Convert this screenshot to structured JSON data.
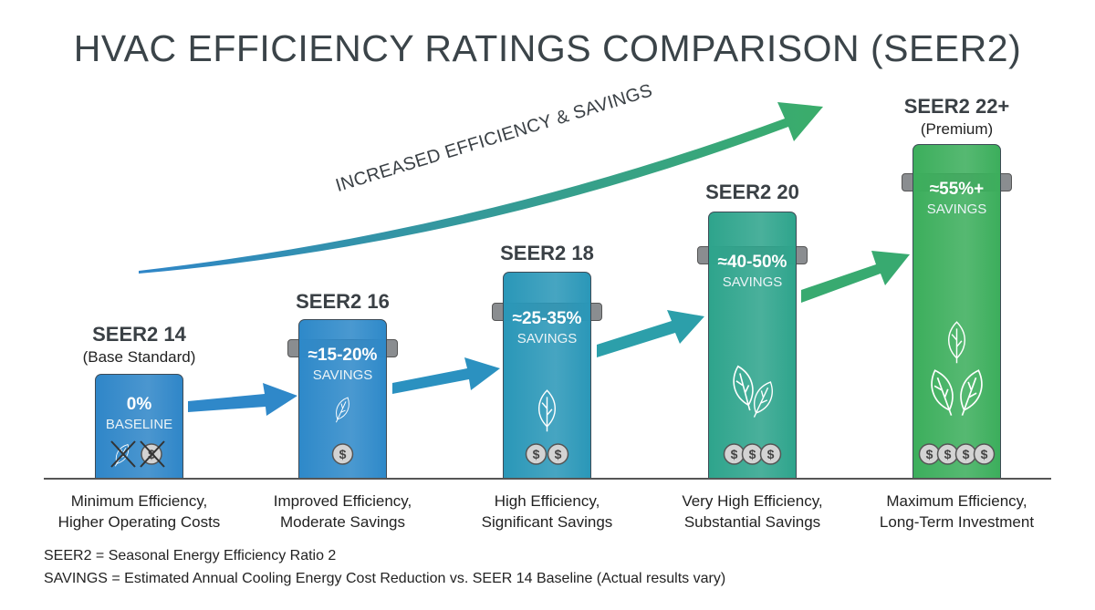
{
  "title": "HVAC EFFICIENCY RATINGS COMPARISON (SEER2)",
  "trend_label": "INCREASED EFFICIENCY & SAVINGS",
  "levels": [
    {
      "name": "SEER2 14",
      "sub": "(Base Standard)",
      "savings": "0%",
      "savings_label": "BASELINE",
      "caption": [
        "Minimum Efficiency,",
        "Higher Operating Costs"
      ],
      "color": "#2f86c8",
      "leaves": 0,
      "coins": 1,
      "crossed": true
    },
    {
      "name": "SEER2 16",
      "sub": "",
      "savings": "≈15-20%",
      "savings_label": "SAVINGS",
      "caption": [
        "Improved Efficiency,",
        "Moderate Savings"
      ],
      "color": "#2e89c9",
      "leaves": 1,
      "coins": 1
    },
    {
      "name": "SEER2 18",
      "sub": "",
      "savings": "≈25-35%",
      "savings_label": "SAVINGS",
      "caption": [
        "High Efficiency,",
        "Significant Savings"
      ],
      "color": "#2a97b8",
      "leaves": 1,
      "coins": 2
    },
    {
      "name": "SEER2 20",
      "sub": "",
      "savings": "≈40-50%",
      "savings_label": "SAVINGS",
      "caption": [
        "Very High Efficiency,",
        "Substantial Savings"
      ],
      "color": "#2ea48c",
      "leaves": 2,
      "coins": 3
    },
    {
      "name": "SEER2 22+",
      "sub": "(Premium)",
      "savings": "≈55%+",
      "savings_label": "SAVINGS",
      "caption": [
        "Maximum Efficiency,",
        "Long-Term Investment"
      ],
      "color": "#3cae5c",
      "leaves": 3,
      "coins": 4
    }
  ],
  "footnotes": [
    "SEER2 = Seasonal Energy Efficiency Ratio 2",
    "SAVINGS = Estimated Annual Cooling Energy Cost Reduction vs. SEER 14 Baseline (Actual results vary)"
  ]
}
